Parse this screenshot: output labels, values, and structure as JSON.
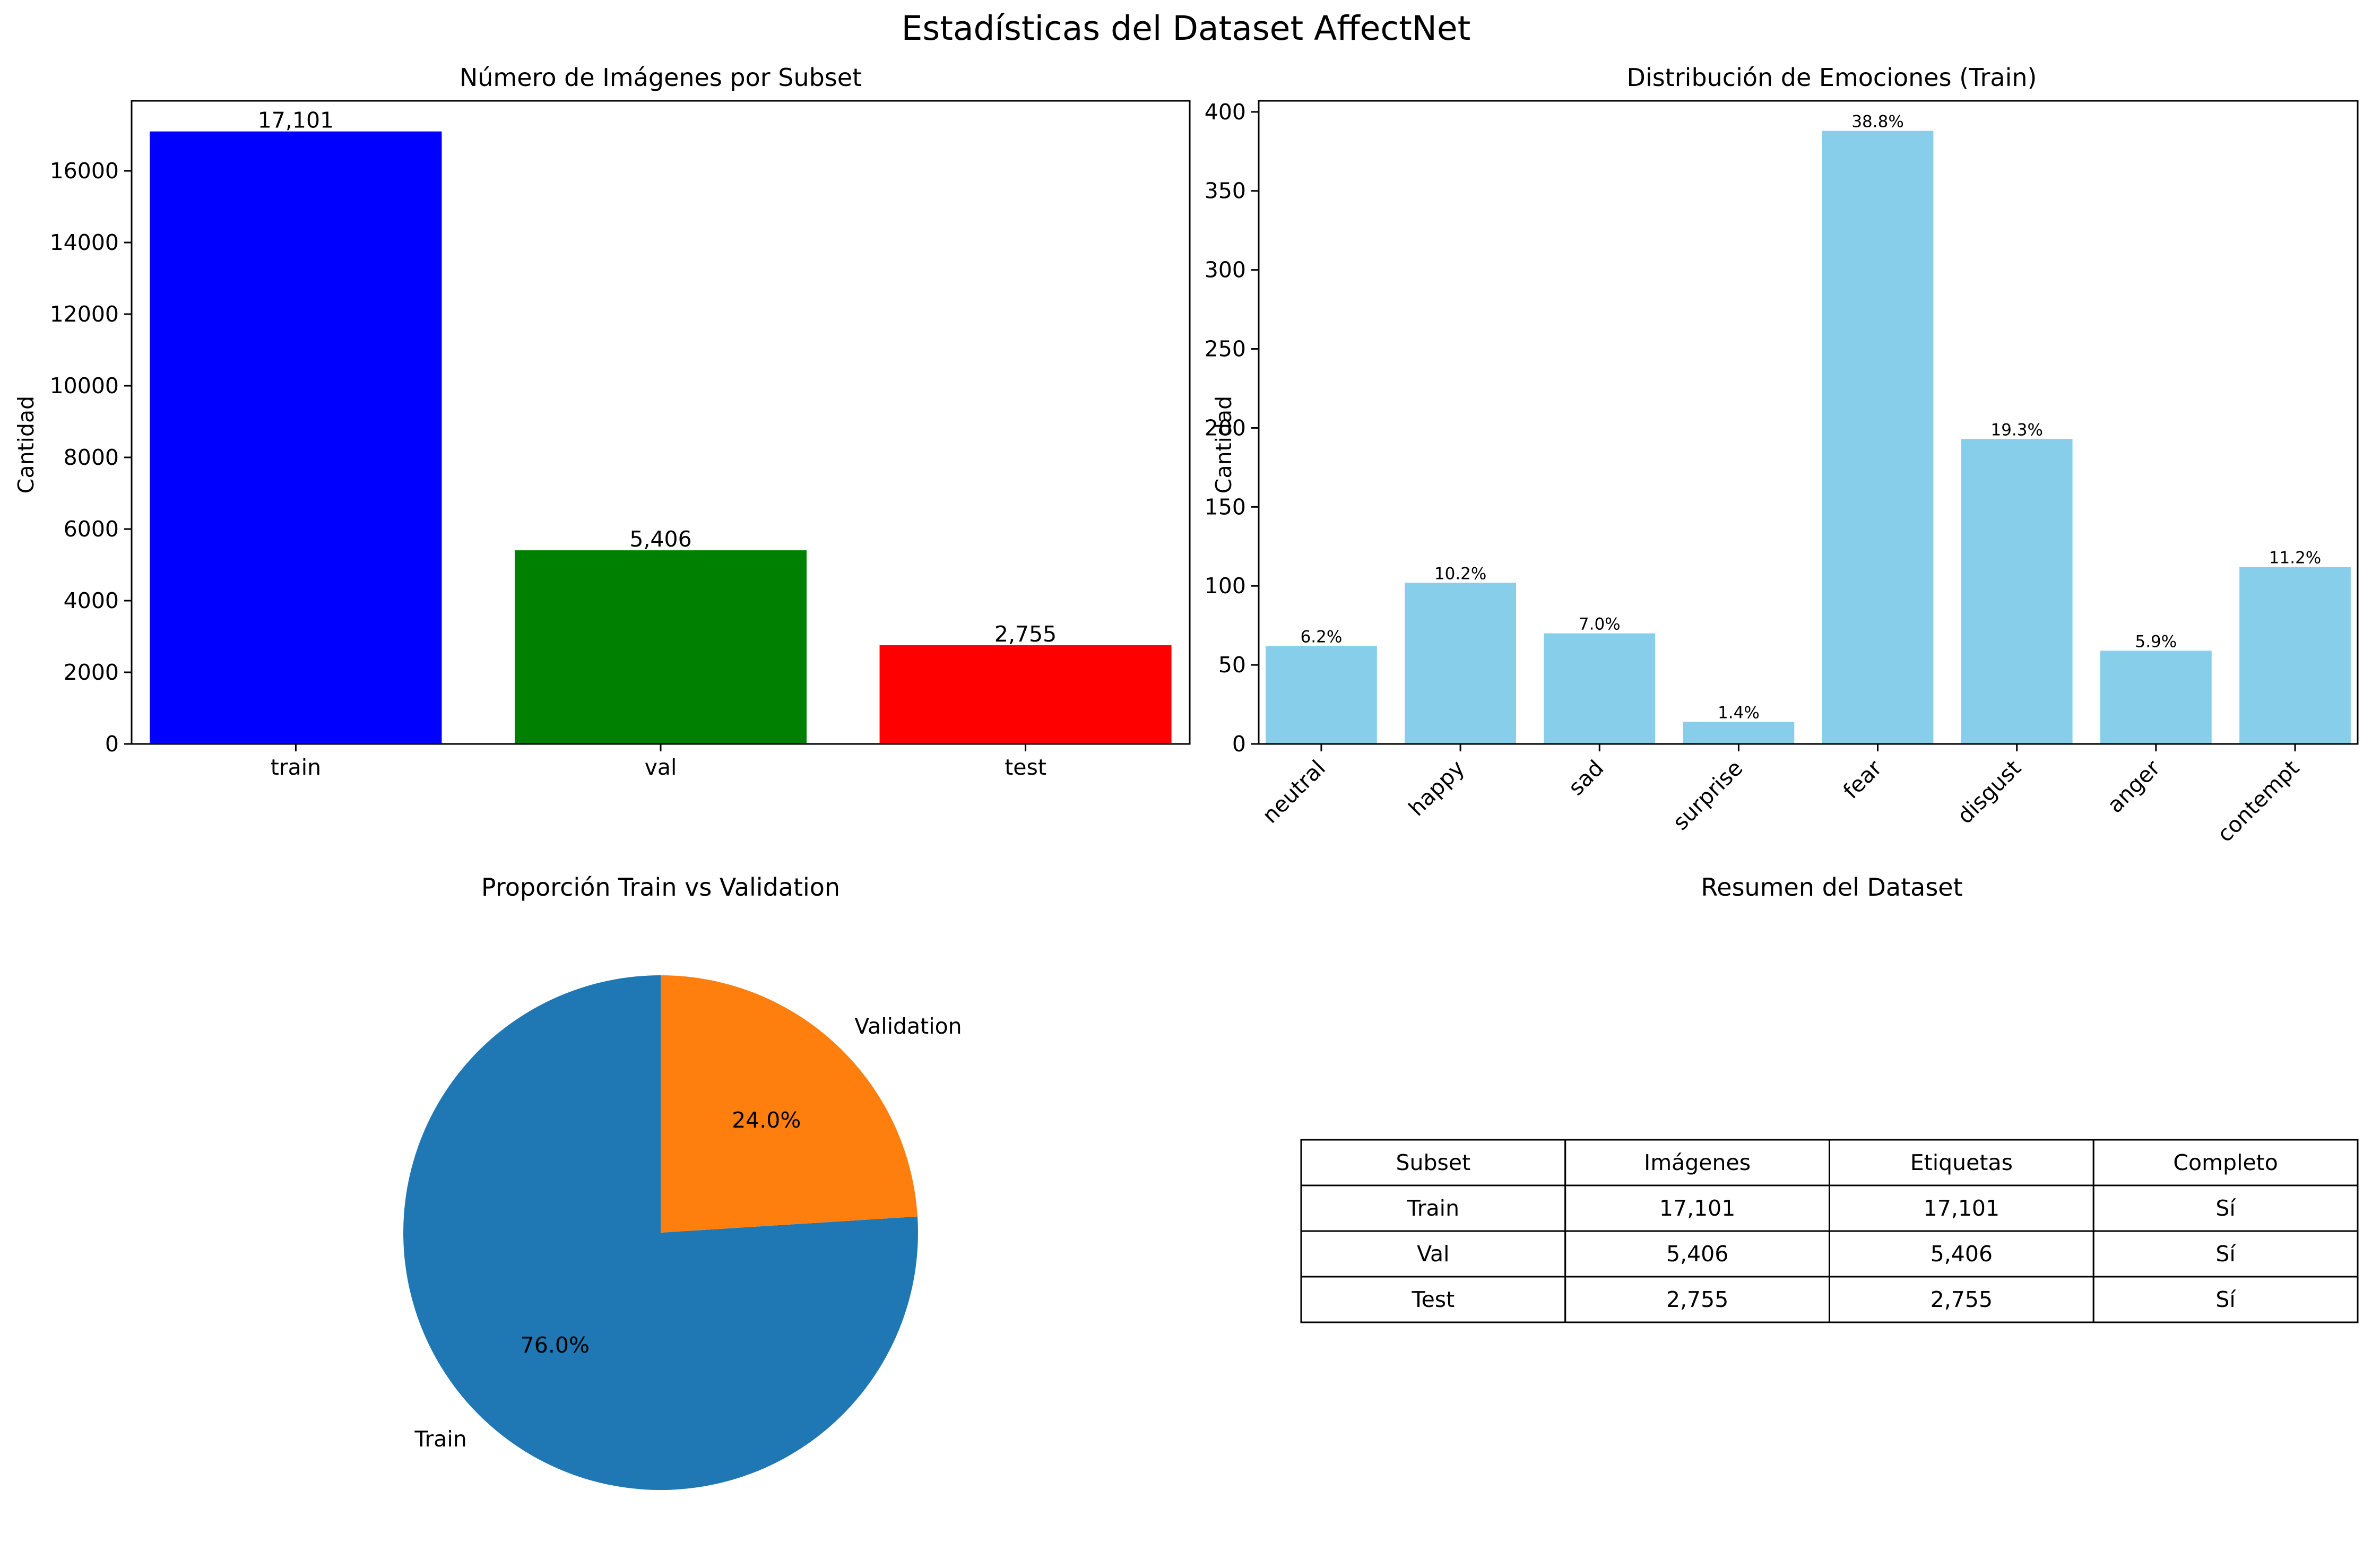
{
  "suptitle": "Estadísticas del Dataset AffectNet",
  "chart_data": [
    {
      "type": "bar",
      "title": "Número de Imágenes por Subset",
      "xlabel": "",
      "ylabel": "Cantidad",
      "ylim": [
        0,
        17956
      ],
      "yticks": [
        0,
        2000,
        4000,
        6000,
        8000,
        10000,
        12000,
        14000,
        16000
      ],
      "categories": [
        "train",
        "val",
        "test"
      ],
      "values": [
        17101,
        5406,
        2755
      ],
      "data_labels": [
        "17,101",
        "5,406",
        "2,755"
      ],
      "colors": [
        "#0000ff",
        "#008000",
        "#ff0000"
      ]
    },
    {
      "type": "bar",
      "title": "Distribución de Emociones (Train)",
      "xlabel": "",
      "ylabel": "Cantidad",
      "ylim": [
        0,
        407
      ],
      "yticks": [
        0,
        50,
        100,
        150,
        200,
        250,
        300,
        350,
        400
      ],
      "categories": [
        "neutral",
        "happy",
        "sad",
        "surprise",
        "fear",
        "disgust",
        "anger",
        "contempt"
      ],
      "values": [
        62,
        102,
        70,
        14,
        388,
        193,
        59,
        112
      ],
      "data_labels": [
        "6.2%",
        "10.2%",
        "7.0%",
        "1.4%",
        "38.8%",
        "19.3%",
        "5.9%",
        "11.2%"
      ],
      "color": "#87ceeb"
    },
    {
      "type": "pie",
      "title": "Proporción Train vs Validation",
      "labels": [
        "Train",
        "Validation"
      ],
      "values": [
        76.0,
        24.0
      ],
      "pct_labels": [
        "76.0%",
        "24.0%"
      ],
      "colors": [
        "#1f77b4",
        "#ff7f0e"
      ]
    },
    {
      "type": "table",
      "title": "Resumen del Dataset",
      "columns": [
        "Subset",
        "Imágenes",
        "Etiquetas",
        "Completo"
      ],
      "rows": [
        [
          "Train",
          "17,101",
          "17,101",
          "Sí"
        ],
        [
          "Val",
          "5,406",
          "5,406",
          "Sí"
        ],
        [
          "Test",
          "2,755",
          "2,755",
          "Sí"
        ]
      ]
    }
  ]
}
